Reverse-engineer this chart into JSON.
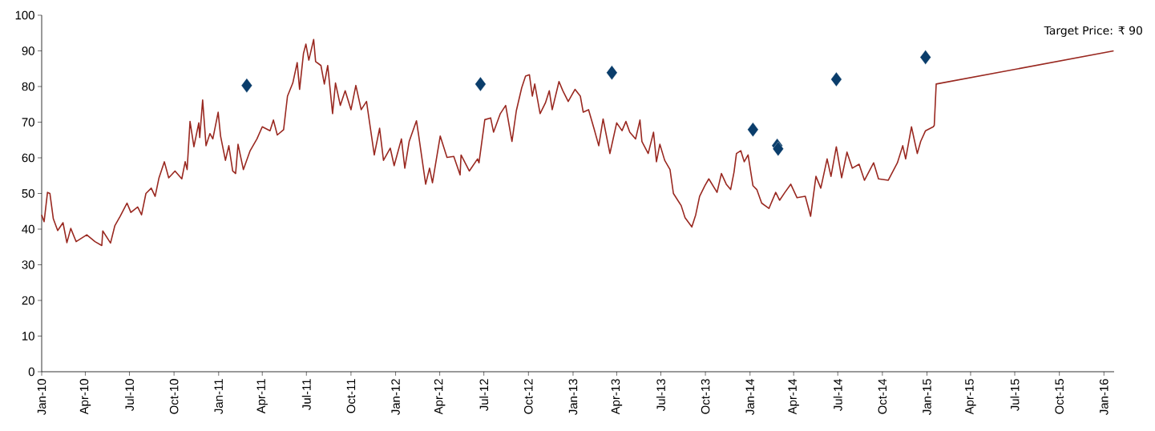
{
  "chart_data": {
    "type": "line",
    "xlim": [
      "2010-01-01",
      "2016-01-22"
    ],
    "ylim": [
      0,
      100
    ],
    "yticks": [
      0,
      10,
      20,
      30,
      40,
      50,
      60,
      70,
      80,
      90,
      100
    ],
    "xticks": [
      {
        "value": "2010-01-01",
        "label": "Jan-10"
      },
      {
        "value": "2010-04-01",
        "label": "Apr-10"
      },
      {
        "value": "2010-07-01",
        "label": "Jul-10"
      },
      {
        "value": "2010-10-01",
        "label": "Oct-10"
      },
      {
        "value": "2011-01-01",
        "label": "Jan-11"
      },
      {
        "value": "2011-04-01",
        "label": "Apr-11"
      },
      {
        "value": "2011-07-01",
        "label": "Jul-11"
      },
      {
        "value": "2011-10-01",
        "label": "Oct-11"
      },
      {
        "value": "2012-01-01",
        "label": "Jan-12"
      },
      {
        "value": "2012-04-01",
        "label": "Apr-12"
      },
      {
        "value": "2012-07-01",
        "label": "Jul-12"
      },
      {
        "value": "2012-10-01",
        "label": "Oct-12"
      },
      {
        "value": "2013-01-01",
        "label": "Jan-13"
      },
      {
        "value": "2013-04-01",
        "label": "Apr-13"
      },
      {
        "value": "2013-07-01",
        "label": "Jul-13"
      },
      {
        "value": "2013-10-01",
        "label": "Oct-13"
      },
      {
        "value": "2014-01-01",
        "label": "Jan-14"
      },
      {
        "value": "2014-04-01",
        "label": "Apr-14"
      },
      {
        "value": "2014-07-01",
        "label": "Jul-14"
      },
      {
        "value": "2014-10-01",
        "label": "Oct-14"
      },
      {
        "value": "2015-01-01",
        "label": "Jan-15"
      },
      {
        "value": "2015-04-01",
        "label": "Apr-15"
      },
      {
        "value": "2015-07-01",
        "label": "Jul-15"
      },
      {
        "value": "2015-10-01",
        "label": "Oct-15"
      },
      {
        "value": "2016-01-01",
        "label": "Jan-16"
      }
    ],
    "annotations": [
      {
        "text": "Target Price: ₹ 90",
        "x": "2016-01-21",
        "y": 90
      }
    ],
    "series": [
      {
        "color": "#992820",
        "x": [
          "2010-01-01",
          "2010-01-06",
          "2010-01-13",
          "2010-01-18",
          "2010-01-25",
          "2010-02-03",
          "2010-02-14",
          "2010-02-22",
          "2010-03-02",
          "2010-03-13",
          "2010-04-04",
          "2010-04-21",
          "2010-05-05",
          "2010-05-07",
          "2010-05-23",
          "2010-06-01",
          "2010-06-12",
          "2010-06-26",
          "2010-07-04",
          "2010-07-18",
          "2010-07-26",
          "2010-08-04",
          "2010-08-15",
          "2010-08-23",
          "2010-08-31",
          "2010-09-11",
          "2010-09-20",
          "2010-10-03",
          "2010-10-17",
          "2010-10-24",
          "2010-10-28",
          "2010-11-03",
          "2010-11-11",
          "2010-11-21",
          "2010-11-23",
          "2010-11-29",
          "2010-12-06",
          "2010-12-14",
          "2010-12-20",
          "2010-12-31",
          "2011-01-05",
          "2011-01-15",
          "2011-01-22",
          "2011-01-30",
          "2011-02-05",
          "2011-02-10",
          "2011-02-21",
          "2011-03-07",
          "2011-03-21",
          "2011-04-01",
          "2011-04-17",
          "2011-04-24",
          "2011-05-02",
          "2011-05-15",
          "2011-05-23",
          "2011-06-03",
          "2011-06-12",
          "2011-06-17",
          "2011-06-25",
          "2011-06-30",
          "2011-07-06",
          "2011-07-16",
          "2011-07-20",
          "2011-07-31",
          "2011-08-07",
          "2011-08-14",
          "2011-08-24",
          "2011-08-30",
          "2011-09-09",
          "2011-09-19",
          "2011-10-01",
          "2011-10-11",
          "2011-10-22",
          "2011-11-02",
          "2011-11-18",
          "2011-11-29",
          "2011-12-07",
          "2011-12-21",
          "2011-12-29",
          "2012-01-13",
          "2012-01-20",
          "2012-01-29",
          "2012-02-13",
          "2012-02-17",
          "2012-03-03",
          "2012-03-11",
          "2012-03-17",
          "2012-04-02",
          "2012-04-16",
          "2012-04-30",
          "2012-05-13",
          "2012-05-15",
          "2012-06-01",
          "2012-06-18",
          "2012-06-21",
          "2012-07-03",
          "2012-07-15",
          "2012-07-21",
          "2012-08-04",
          "2012-08-15",
          "2012-08-28",
          "2012-09-06",
          "2012-09-17",
          "2012-09-25",
          "2012-10-03",
          "2012-10-09",
          "2012-10-14",
          "2012-10-25",
          "2012-11-05",
          "2012-11-13",
          "2012-11-19",
          "2012-12-03",
          "2012-12-11",
          "2012-12-22",
          "2013-01-05",
          "2013-01-16",
          "2013-01-22",
          "2013-02-02",
          "2013-02-13",
          "2013-02-23",
          "2013-03-04",
          "2013-03-18",
          "2013-04-01",
          "2013-04-12",
          "2013-04-20",
          "2013-04-28",
          "2013-05-10",
          "2013-05-19",
          "2013-05-23",
          "2013-06-05",
          "2013-06-16",
          "2013-06-22",
          "2013-06-29",
          "2013-07-09",
          "2013-07-20",
          "2013-07-27",
          "2013-08-12",
          "2013-08-20",
          "2013-09-03",
          "2013-09-11",
          "2013-09-19",
          "2013-09-30",
          "2013-10-08",
          "2013-10-25",
          "2013-11-03",
          "2013-11-13",
          "2013-11-22",
          "2013-11-29",
          "2013-12-04",
          "2013-12-13",
          "2013-12-20",
          "2013-12-28",
          "2014-01-07",
          "2014-01-15",
          "2014-01-25",
          "2014-02-09",
          "2014-02-23",
          "2014-03-03",
          "2014-03-14",
          "2014-03-26",
          "2014-04-08",
          "2014-04-25",
          "2014-05-06",
          "2014-05-17",
          "2014-05-27",
          "2014-06-09",
          "2014-06-17",
          "2014-06-28",
          "2014-07-09",
          "2014-07-20",
          "2014-07-31",
          "2014-08-14",
          "2014-08-25",
          "2014-09-13",
          "2014-09-23",
          "2014-10-13",
          "2014-11-01",
          "2014-11-12",
          "2014-11-18",
          "2014-11-30",
          "2014-12-12",
          "2014-12-19",
          "2014-12-29",
          "2015-01-14",
          "2015-01-16",
          "2015-01-20",
          "2016-01-21"
        ],
        "values": [
          44.0,
          42.1,
          50.3,
          50.0,
          42.9,
          39.6,
          41.8,
          36.2,
          40.2,
          36.5,
          38.4,
          36.5,
          35.4,
          39.5,
          36.1,
          41.0,
          43.6,
          47.3,
          44.7,
          46.2,
          44.0,
          50.0,
          51.5,
          49.2,
          54.4,
          58.9,
          54.4,
          56.3,
          54.1,
          58.9,
          56.7,
          70.2,
          63.1,
          69.8,
          65.7,
          76.2,
          63.4,
          66.8,
          65.3,
          72.8,
          66.1,
          59.3,
          63.4,
          56.3,
          55.6,
          63.8,
          56.7,
          62.0,
          65.3,
          68.7,
          67.6,
          70.6,
          66.4,
          67.9,
          77.3,
          81.0,
          86.7,
          79.2,
          89.3,
          91.9,
          87.4,
          93.2,
          87.0,
          85.9,
          80.7,
          85.9,
          72.4,
          81.0,
          74.7,
          78.8,
          73.5,
          80.3,
          73.5,
          75.8,
          60.8,
          68.3,
          59.3,
          62.7,
          57.8,
          65.3,
          57.1,
          64.6,
          70.4,
          66.8,
          52.6,
          57.1,
          53.0,
          66.1,
          60.1,
          60.4,
          55.2,
          60.8,
          56.3,
          59.7,
          58.6,
          70.7,
          71.2,
          67.2,
          72.4,
          74.7,
          64.6,
          73.2,
          79.6,
          82.9,
          83.3,
          77.3,
          80.7,
          72.4,
          75.4,
          78.8,
          73.5,
          81.4,
          78.8,
          75.8,
          79.2,
          77.3,
          72.8,
          73.5,
          68.3,
          63.4,
          70.9,
          61.2,
          69.8,
          67.6,
          70.2,
          67.2,
          65.3,
          70.6,
          64.6,
          61.2,
          67.2,
          58.9,
          63.8,
          59.3,
          56.7,
          50.0,
          46.6,
          43.2,
          40.6,
          44.0,
          49.2,
          52.2,
          54.1,
          50.3,
          55.6,
          52.6,
          51.1,
          56.0,
          61.2,
          62.0,
          58.9,
          60.8,
          52.2,
          51.1,
          47.3,
          45.8,
          50.3,
          48.1,
          50.3,
          52.6,
          48.8,
          49.2,
          43.6,
          54.8,
          51.5,
          59.7,
          54.8,
          63.1,
          54.4,
          61.6,
          57.1,
          58.2,
          53.7,
          58.6,
          54.1,
          53.7,
          58.6,
          63.4,
          59.7,
          68.7,
          61.2,
          64.6,
          67.6,
          68.7,
          69.1,
          80.7,
          90
        ]
      },
      {
        "type": "scatter",
        "color": "#0a3d6b",
        "marker": "diamond",
        "x": [
          "2011-02-28",
          "2012-06-24",
          "2013-03-22",
          "2014-01-07",
          "2014-02-26",
          "2014-02-28",
          "2014-06-28",
          "2014-12-29"
        ],
        "values": [
          80.3,
          80.7,
          83.9,
          67.9,
          63.4,
          62.5,
          82.0,
          88.2
        ]
      }
    ]
  }
}
